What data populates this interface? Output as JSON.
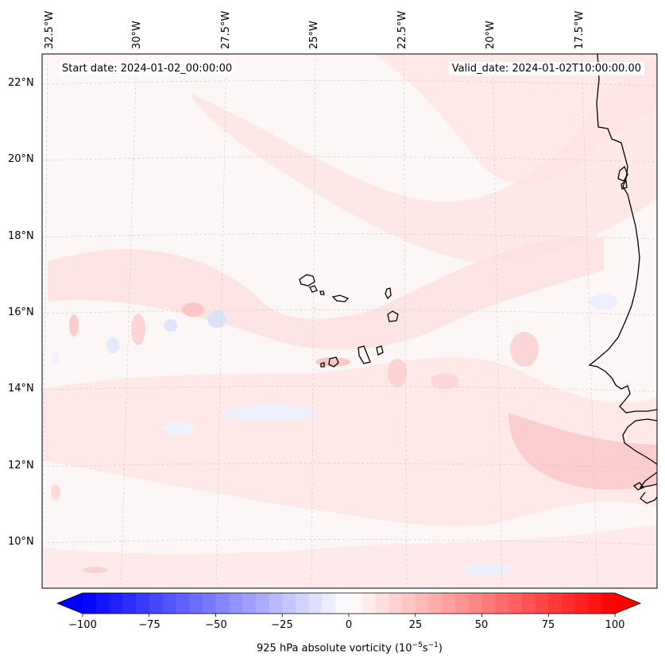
{
  "map": {
    "start_label": "Start date: 2024-01-02_00:00:00",
    "valid_label": "Valid_date: 2024-01-02T10:00:00.00",
    "lon_ticks": [
      "32.5°W",
      "30°W",
      "27.5°W",
      "25°W",
      "22.5°W",
      "20°W",
      "17.5°W"
    ],
    "lat_ticks": [
      "22°N",
      "20°N",
      "18°N",
      "16°N",
      "14°N",
      "12°N",
      "10°N"
    ],
    "background_color": "#fdf6f6",
    "positive_color": "#ff0000",
    "negative_color": "#0000ff",
    "coastline_color": "#000000",
    "gridline_color": "#c8c8c8"
  },
  "colorbar": {
    "title": "925 hPa absolute vorticity (10",
    "title_exp1": "−5",
    "title_mid": "s",
    "title_exp2": "−1",
    "title_end": ")",
    "ticks": [
      "−100",
      "−75",
      "−50",
      "−25",
      "0",
      "25",
      "50",
      "75",
      "100"
    ],
    "min": -100,
    "max": 100,
    "levels": 40
  }
}
